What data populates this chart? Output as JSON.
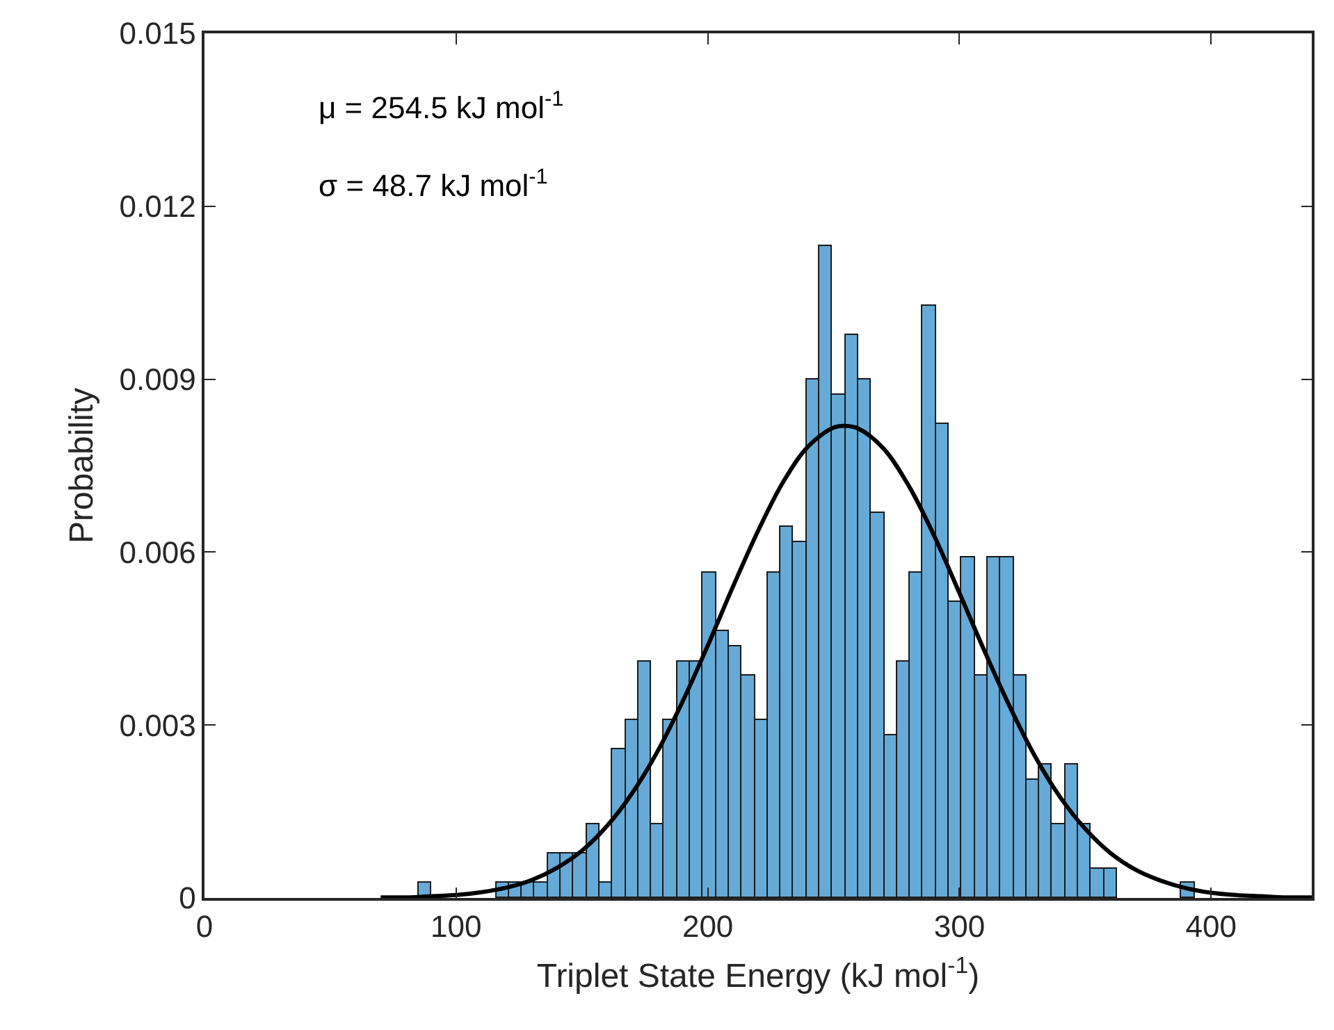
{
  "chart_data": {
    "type": "histogram",
    "xlabel": "Triplet State Energy (kJ mol$^{-1}$)",
    "ylabel": "Probability",
    "annotations": [
      "μ = 254.5 kJ mol$^{-1}$",
      "σ = 48.7 kJ mol$^{-1}$"
    ],
    "bins": [
      85,
      90.14,
      95.28,
      100.42,
      105.56,
      110.7,
      115.84,
      120.98,
      126.12,
      131.26,
      136.4,
      141.54,
      146.68,
      151.82,
      156.96,
      162.1,
      167.24,
      172.38,
      177.52,
      182.66,
      187.8,
      192.94,
      198.08,
      203.22,
      208.36,
      213.5,
      218.64,
      223.78,
      228.92,
      234.06,
      239.2,
      244.34,
      249.48,
      254.62,
      259.76,
      264.9,
      270.04,
      275.18,
      280.32,
      285.46,
      290.6,
      295.74,
      300.88,
      306.02,
      311.16,
      316.3,
      321.44,
      326.58,
      331.72,
      336.86,
      342,
      347.14,
      352.28,
      357.42,
      362.56,
      367.7,
      372.84,
      377.98,
      383.12,
      388.26,
      393.4
    ],
    "values": [
      0.00026,
      0,
      0,
      0,
      0,
      0,
      0.00026,
      0.00026,
      0.00026,
      0.00026,
      0.00077,
      0.00077,
      0.00077,
      0.00129,
      0.00026,
      0.00257,
      0.00308,
      0.00411,
      0.00129,
      0.00308,
      0.00411,
      0.00411,
      0.00565,
      0.00463,
      0.00437,
      0.00386,
      0.00308,
      0.00565,
      0.00643,
      0.00617,
      0.009,
      0.01131,
      0.00874,
      0.00977,
      0.009,
      0.00668,
      0.00283,
      0.00411,
      0.00565,
      0.01028,
      0.00822,
      0.00514,
      0.00591,
      0.00386,
      0.00591,
      0.00591,
      0.00386,
      0.00206,
      0.00231,
      0.00129,
      0.00231,
      0.00129,
      0.00051,
      0.00051,
      0,
      0,
      0,
      0,
      0,
      0.00026
    ],
    "color": "#66aad7",
    "series": [
      {
        "type": "line",
        "color": "#000000",
        "x": [
          70,
          80,
          90,
          100,
          110,
          120,
          130,
          140,
          150,
          160,
          170,
          180,
          190,
          200,
          210,
          220,
          230,
          240,
          250,
          254.5,
          260,
          270,
          280,
          290,
          300,
          310,
          320,
          330,
          340,
          350,
          360,
          370,
          380,
          390,
          400,
          410,
          420,
          430,
          440
        ],
        "values": [
          1e-05,
          1e-05,
          3e-05,
          5e-05,
          0.0001,
          0.00018,
          0.00031,
          0.00052,
          0.00082,
          0.00125,
          0.00182,
          0.00254,
          0.00341,
          0.00438,
          0.0054,
          0.00637,
          0.00722,
          0.00784,
          0.00816,
          0.00819,
          0.00814,
          0.00779,
          0.00714,
          0.00628,
          0.00529,
          0.00428,
          0.00332,
          0.00246,
          0.00175,
          0.0012,
          0.00078,
          0.00049,
          0.0003,
          0.00017,
          9e-05,
          5e-05,
          3e-05,
          1e-05,
          1e-05
        ]
      }
    ],
    "xlim": [
      0,
      440
    ],
    "xticks": [
      0,
      100,
      200,
      300,
      400
    ],
    "ylim": [
      0,
      0.015
    ],
    "yticks": [
      0,
      0.003,
      0.006,
      0.009,
      0.012,
      0.015
    ],
    "marker": "none",
    "line_style": "solid"
  }
}
